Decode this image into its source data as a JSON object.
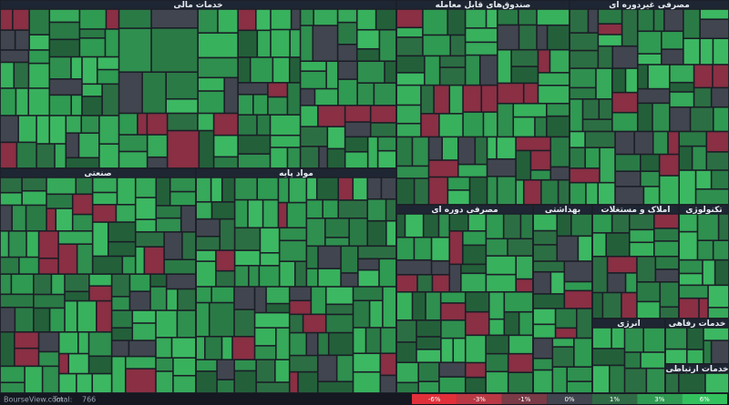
{
  "chart_data": {
    "type": "treemap",
    "groups": [
      {
        "name": "خدمات مالی"
      },
      {
        "name": "صندوق‌های قابل معامله"
      },
      {
        "name": "مصرفی غیردوره ای"
      },
      {
        "name": "صنعتی"
      },
      {
        "name": "مواد پایه"
      },
      {
        "name": "مصرفی دوره ای"
      },
      {
        "name": "بهداشتی"
      },
      {
        "name": "املاک و مستغلات"
      },
      {
        "name": "تکنولوژی"
      },
      {
        "name": "انرژی"
      },
      {
        "name": "خدمات رفاهی"
      },
      {
        "name": "خدمات ارتباطی"
      }
    ],
    "color_scale": {
      "ticks": [
        {
          "value": -6,
          "label": "-6%"
        },
        {
          "value": -3,
          "label": "-3%"
        },
        {
          "value": -1,
          "label": "-1%"
        },
        {
          "value": 0,
          "label": "0%"
        },
        {
          "value": 1,
          "label": "1%"
        },
        {
          "value": 3,
          "label": "3%"
        },
        {
          "value": 6,
          "label": "6%"
        }
      ],
      "colors": [
        "#e0303a",
        "#b83844",
        "#7a3a46",
        "#41454f",
        "#2f6b45",
        "#2f9a52",
        "#33c15e"
      ]
    },
    "footer": {
      "site": "BourseView.com",
      "total_label": "Total:",
      "total": 766
    }
  }
}
